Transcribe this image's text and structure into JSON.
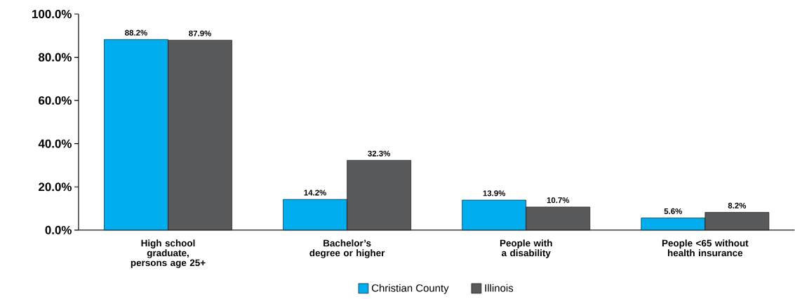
{
  "chart_data": {
    "type": "bar",
    "categories": [
      "High school graduate, persons age 25+",
      "Bachelor’s degree or higher",
      "People with a disability",
      "People <65 without health insurance"
    ],
    "series": [
      {
        "name": "Christian County",
        "color": "#00aeef",
        "values": [
          88.2,
          14.2,
          13.9,
          5.6
        ],
        "value_labels": [
          "88.2%",
          "14.2%",
          "13.9%",
          "5.6%"
        ]
      },
      {
        "name": "Illinois",
        "color": "#58595b",
        "values": [
          87.9,
          32.3,
          10.7,
          8.2
        ],
        "value_labels": [
          "87.9%",
          "32.3%",
          "10.7%",
          "8.2%"
        ]
      }
    ],
    "ylim": [
      0,
      100
    ],
    "yticks": [
      {
        "value": 0,
        "label": "0.0%"
      },
      {
        "value": 20,
        "label": "20.0%"
      },
      {
        "value": 40,
        "label": "40.0%"
      },
      {
        "value": 60,
        "label": "60.0%"
      },
      {
        "value": 80,
        "label": "80.0%"
      },
      {
        "value": 100,
        "label": "100.0%"
      }
    ],
    "grid": false,
    "legend": "bottom"
  }
}
